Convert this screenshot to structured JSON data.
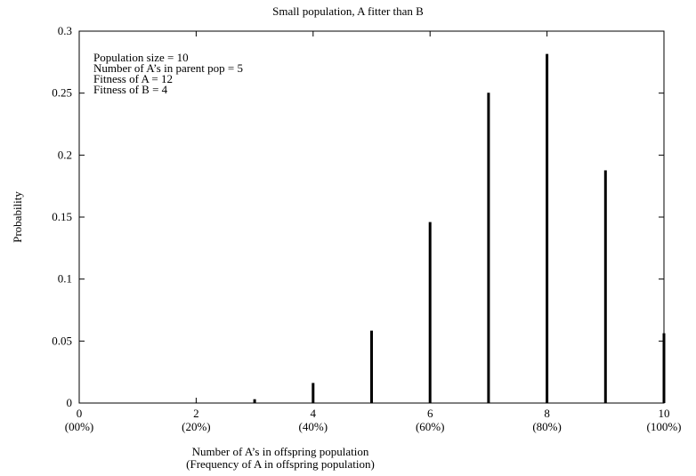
{
  "chart_data": {
    "type": "bar",
    "title": "Small population, A fitter than B",
    "xlabel": "Number of A’s in offspring population",
    "xlabel2": "(Frequency of A in offspring population)",
    "ylabel": "Probability",
    "xlim": [
      0,
      10
    ],
    "ylim": [
      0,
      0.3
    ],
    "grid": false,
    "x_ticks": [
      {
        "value": 0,
        "label": "0",
        "sublabel": "(00%)"
      },
      {
        "value": 2,
        "label": "2",
        "sublabel": "(20%)"
      },
      {
        "value": 4,
        "label": "4",
        "sublabel": "(40%)"
      },
      {
        "value": 6,
        "label": "6",
        "sublabel": "(60%)"
      },
      {
        "value": 8,
        "label": "8",
        "sublabel": "(80%)"
      },
      {
        "value": 10,
        "label": "10",
        "sublabel": "(100%)"
      }
    ],
    "y_ticks": [
      {
        "value": 0,
        "label": "0"
      },
      {
        "value": 0.05,
        "label": "0.05"
      },
      {
        "value": 0.1,
        "label": "0.1"
      },
      {
        "value": 0.15,
        "label": "0.15"
      },
      {
        "value": 0.2,
        "label": "0.2"
      },
      {
        "value": 0.25,
        "label": "0.25"
      },
      {
        "value": 0.3,
        "label": "0.3"
      }
    ],
    "x": [
      0,
      1,
      2,
      3,
      4,
      5,
      6,
      7,
      8,
      9,
      10
    ],
    "values": [
      0.0,
      0.0,
      0.0004,
      0.0031,
      0.0162,
      0.0584,
      0.146,
      0.2503,
      0.2816,
      0.1877,
      0.0563
    ],
    "annotations": [
      "Population size = 10",
      "Number of A’s in parent pop = 5",
      "Fitness of A = 12",
      "Fitness of B = 4"
    ]
  }
}
